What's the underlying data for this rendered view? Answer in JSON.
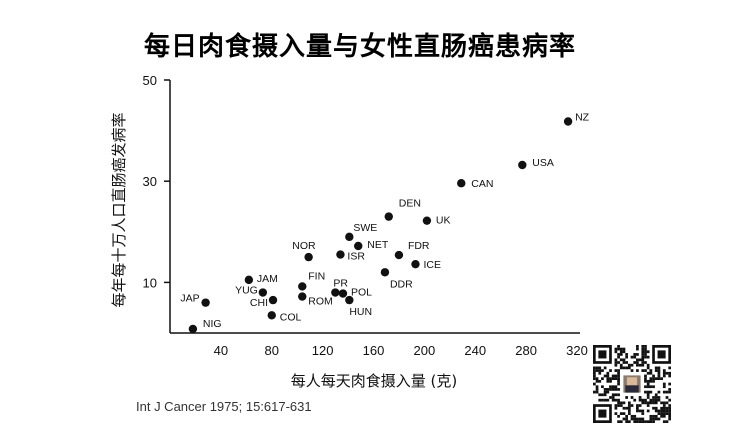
{
  "chart_data": {
    "type": "scatter",
    "title": "每日肉食摄入量与女性直肠癌患病率",
    "xlabel": "每人每天肉食摄入量 (克)",
    "ylabel": "每年每十万人口直肠癌发病率",
    "xlim": [
      0,
      320
    ],
    "ylim": [
      0,
      50
    ],
    "xticks": [
      40,
      80,
      120,
      160,
      200,
      240,
      280,
      320
    ],
    "yticks": [
      10,
      30,
      50
    ],
    "grid": false,
    "points": [
      {
        "label": "NIG",
        "x": 18,
        "y": 0.8
      },
      {
        "label": "JAP",
        "x": 28,
        "y": 6
      },
      {
        "label": "JAM",
        "x": 62,
        "y": 10.5
      },
      {
        "label": "YUG",
        "x": 73,
        "y": 8
      },
      {
        "label": "CHI",
        "x": 81,
        "y": 6.5
      },
      {
        "label": "COL",
        "x": 80,
        "y": 3.5
      },
      {
        "label": "NOR",
        "x": 109,
        "y": 15
      },
      {
        "label": "FIN",
        "x": 104,
        "y": 9.2
      },
      {
        "label": "ROM",
        "x": 104,
        "y": 7.2
      },
      {
        "label": "PR",
        "x": 130,
        "y": 8
      },
      {
        "label": "POL",
        "x": 136,
        "y": 7.8
      },
      {
        "label": "HUN",
        "x": 141,
        "y": 6.5
      },
      {
        "label": "ISR",
        "x": 134,
        "y": 15.5
      },
      {
        "label": "SWE",
        "x": 141,
        "y": 19
      },
      {
        "label": "NET",
        "x": 148,
        "y": 17.2
      },
      {
        "label": "DEN",
        "x": 172,
        "y": 23
      },
      {
        "label": "FDR",
        "x": 180,
        "y": 15.4
      },
      {
        "label": "DDR",
        "x": 169,
        "y": 12
      },
      {
        "label": "ICE",
        "x": 193,
        "y": 13.6
      },
      {
        "label": "UK",
        "x": 202,
        "y": 22.2
      },
      {
        "label": "CAN",
        "x": 229,
        "y": 29.6
      },
      {
        "label": "USA",
        "x": 277,
        "y": 33.2
      },
      {
        "label": "NZ",
        "x": 313,
        "y": 41.8
      }
    ]
  },
  "citation": "Int J Cancer 1975; 15:617-631"
}
